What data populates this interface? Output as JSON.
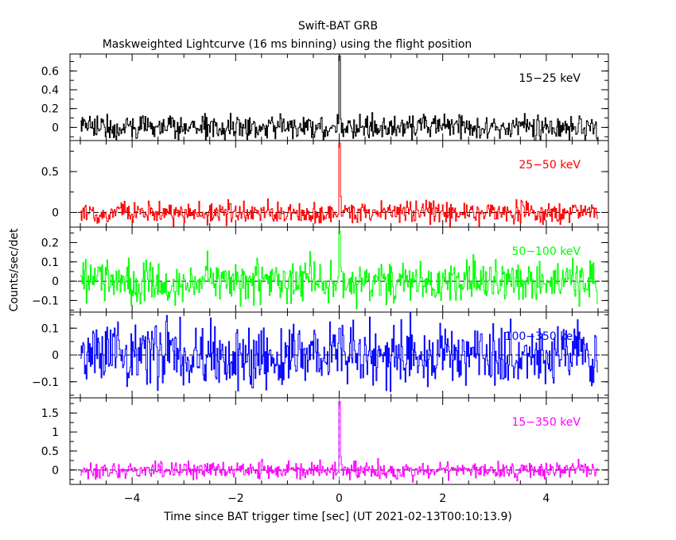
{
  "chart_data": {
    "type": "line",
    "title": "Swift-BAT GRB",
    "subtitle": "Maskweighted Lightcurve (16 ms binning) using the flight position",
    "xlabel": "Time since BAT trigger time [sec] (UT 2021-02-13T00:10:13.9)",
    "ylabel": "Counts/sec/det",
    "xlim": [
      -5.2,
      5.2
    ],
    "x_ticks": [
      -4,
      -2,
      0,
      2,
      4
    ],
    "x_tick_labels": [
      "−4",
      "−2",
      "0",
      "2",
      "4"
    ],
    "grid": false,
    "trigger_marker_x": 0,
    "panels": [
      {
        "band": "15−25 keV",
        "color": "#000000",
        "ylim": [
          -0.14,
          0.78
        ],
        "y_ticks": [
          0,
          0.2,
          0.4,
          0.6
        ],
        "y_tick_labels": [
          "0",
          "0.2",
          "0.4",
          "0.6"
        ],
        "noise_rms": 0.065,
        "peak": 0.76,
        "zero_line": false
      },
      {
        "band": "25−50 keV",
        "color": "#ff0000",
        "ylim": [
          -0.18,
          0.88
        ],
        "y_ticks": [
          0,
          0.5
        ],
        "y_tick_labels": [
          "0",
          "0.5"
        ],
        "noise_rms": 0.065,
        "peak": 0.85,
        "zero_line": true
      },
      {
        "band": "50−100 keV",
        "color": "#00ff00",
        "ylim": [
          -0.16,
          0.28
        ],
        "y_ticks": [
          -0.1,
          0,
          0.1,
          0.2
        ],
        "y_tick_labels": [
          "−0.1",
          "0",
          "0.1",
          "0.2"
        ],
        "noise_rms": 0.055,
        "peak": 0.26,
        "zero_line": true
      },
      {
        "band": "100−350 keV",
        "color": "#0000ff",
        "ylim": [
          -0.16,
          0.16
        ],
        "y_ticks": [
          -0.1,
          0,
          0.1
        ],
        "y_tick_labels": [
          "−0.1",
          "0",
          "0.1"
        ],
        "noise_rms": 0.06,
        "peak": 0.1,
        "zero_line": true
      },
      {
        "band": "15−350 keV",
        "color": "#ff00ff",
        "ylim": [
          -0.38,
          1.9
        ],
        "y_ticks": [
          0,
          0.5,
          1,
          1.5
        ],
        "y_tick_labels": [
          "0",
          "0.5",
          "1",
          "1.5"
        ],
        "noise_rms": 0.11,
        "peak": 1.8,
        "zero_line": true
      }
    ],
    "x_range_data": [
      -5.0,
      5.0
    ],
    "bin_width": 0.016
  }
}
